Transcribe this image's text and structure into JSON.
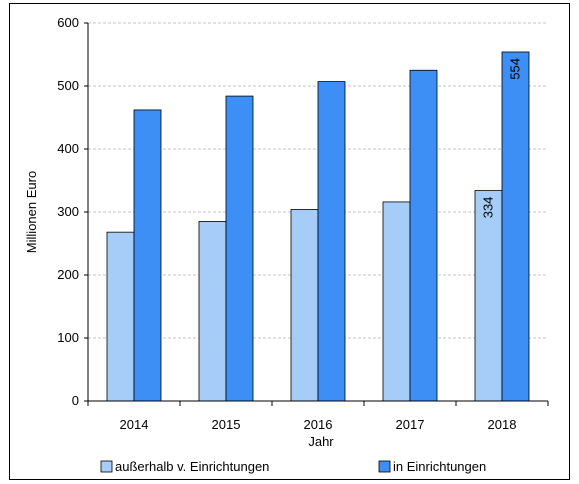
{
  "chart_data": {
    "type": "bar",
    "title": "",
    "xlabel": "Jahr",
    "ylabel": "Millionen Euro",
    "ylim": [
      0,
      600
    ],
    "yticks": [
      0,
      100,
      200,
      300,
      400,
      500,
      600
    ],
    "grid": true,
    "legend_position": "bottom",
    "categories": [
      "2014",
      "2015",
      "2016",
      "2017",
      "2018"
    ],
    "series": [
      {
        "name": "außerhalb v. Einrichtungen",
        "color": "#a6ccf8",
        "values": [
          268,
          285,
          304,
          316,
          334
        ],
        "data_labels": [
          null,
          null,
          null,
          null,
          "334"
        ]
      },
      {
        "name": "in Einrichtungen",
        "color": "#3d8ff5",
        "values": [
          462,
          484,
          507,
          525,
          554
        ],
        "data_labels": [
          null,
          null,
          null,
          null,
          "554"
        ]
      }
    ]
  }
}
